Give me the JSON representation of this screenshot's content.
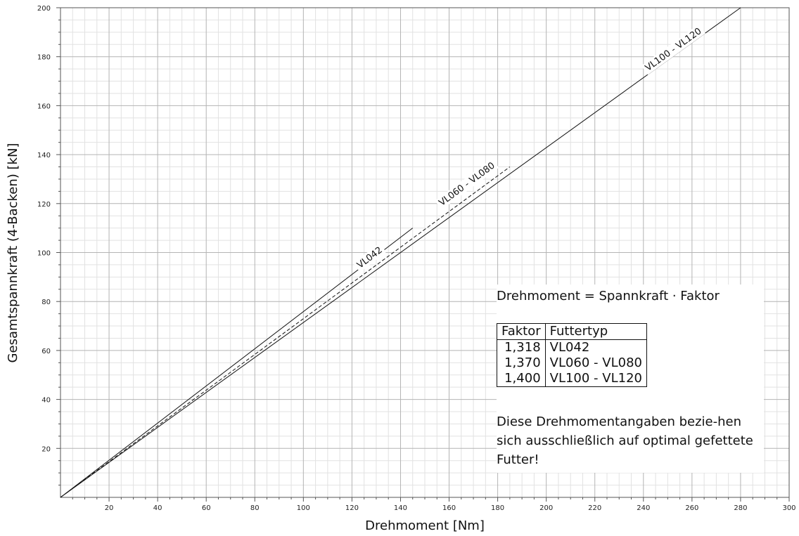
{
  "chart_data": {
    "type": "line",
    "xlabel": "Drehmoment [Nm]",
    "ylabel": "Gesamtspannkraft (4-Backen) [kN]",
    "xlim": [
      0,
      300
    ],
    "ylim": [
      0,
      200
    ],
    "x_ticks": [
      "20",
      "40",
      "60",
      "80",
      "100",
      "120",
      "140",
      "160",
      "180",
      "200",
      "220",
      "240",
      "260",
      "280",
      "300"
    ],
    "y_ticks": [
      "20",
      "40",
      "60",
      "80",
      "100",
      "120",
      "140",
      "160",
      "180",
      "200"
    ],
    "grid": true,
    "series": [
      {
        "name": "VL042",
        "style": "solid",
        "x": [
          0,
          145
        ],
        "y": [
          0,
          110
        ],
        "label_at": [
          128,
          97
        ]
      },
      {
        "name": "VL060 - VL080",
        "style": "dashed",
        "x": [
          0,
          185
        ],
        "y": [
          0,
          135
        ],
        "label_at": [
          168,
          127
        ]
      },
      {
        "name": "VL100 - VL120",
        "style": "solid",
        "x": [
          0,
          280
        ],
        "y": [
          0,
          200
        ],
        "label_at": [
          253,
          182
        ]
      }
    ]
  },
  "info": {
    "formula": "Drehmoment = Spannkraft · Faktor",
    "table_headers": [
      "Faktor",
      "Futtertyp"
    ],
    "table_rows": [
      [
        "1,318",
        "VL042"
      ],
      [
        "1,370",
        "VL060 - VL080"
      ],
      [
        "1,400",
        "VL100 - VL120"
      ]
    ],
    "note": "Diese Drehmomentangaben bezie-hen sich ausschließlich auf optimal gefettete Futter!"
  }
}
